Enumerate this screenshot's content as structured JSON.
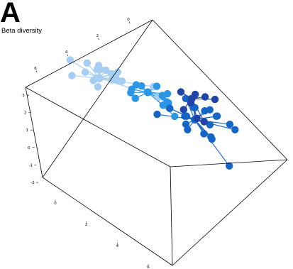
{
  "panel": {
    "label": "A",
    "title": "Beta diversity"
  },
  "chart_data": {
    "type": "scatter",
    "subtype": "3d-ordination-spider",
    "title": "Beta diversity",
    "xlabel": "",
    "ylabel": "",
    "zlabel": "",
    "grid": false,
    "legend": "none",
    "axes": {
      "back_axis": {
        "ticks": [
          6,
          4,
          2,
          0
        ]
      },
      "left_axis": {
        "ticks": [
          3,
          2,
          1,
          0,
          -1,
          -2
        ]
      },
      "bottom_axis": {
        "ticks": [
          0,
          2,
          4,
          6
        ]
      }
    },
    "series": [
      {
        "color": "#a6cdf2",
        "centroid": [
          0.8,
          3.0,
          1.6
        ],
        "points": [
          [
            0.1,
            2.4,
            2.9
          ],
          [
            0.6,
            2.6,
            2.8
          ],
          [
            1.1,
            2.4,
            2.7
          ],
          [
            1.6,
            2.8,
            2.5
          ],
          [
            0.3,
            2.2,
            2.0
          ],
          [
            0.9,
            3.2,
            2.1
          ],
          [
            1.4,
            3.0,
            1.9
          ],
          [
            0.2,
            3.1,
            1.7
          ],
          [
            0.7,
            2.8,
            1.5
          ],
          [
            1.2,
            3.4,
            1.4
          ],
          [
            0.5,
            3.5,
            1.8
          ],
          [
            1.0,
            2.6,
            1.3
          ],
          [
            1.5,
            3.2,
            1.6
          ],
          [
            0.4,
            3.4,
            1.2
          ],
          [
            0.8,
            3.7,
            1.1
          ],
          [
            1.3,
            2.9,
            2.2
          ],
          [
            2.4,
            3.6,
            1.4
          ],
          [
            2.8,
            3.3,
            1.0
          ],
          [
            0.7,
            3.1,
            2.4
          ]
        ]
      },
      {
        "color": "#2b96e6",
        "centroid": [
          1.8,
          4.2,
          0.4
        ],
        "points": [
          [
            1.5,
            4.0,
            0.9
          ],
          [
            2.0,
            4.4,
            0.8
          ],
          [
            2.4,
            4.1,
            0.5
          ],
          [
            1.3,
            4.6,
            0.4
          ],
          [
            2.2,
            4.7,
            0.2
          ],
          [
            1.6,
            3.8,
            0.1
          ],
          [
            2.5,
            4.3,
            -0.1
          ],
          [
            1.9,
            4.9,
            -0.2
          ],
          [
            1.1,
            4.3,
            0.0
          ],
          [
            2.7,
            3.9,
            0.3
          ],
          [
            2.1,
            4.6,
            -0.6
          ],
          [
            2.6,
            4.5,
            -1.1
          ],
          [
            1.4,
            3.9,
            0.6
          ]
        ]
      },
      {
        "color": "#1565c8",
        "centroid": [
          4.2,
          3.2,
          0.1
        ],
        "points": [
          [
            3.6,
            2.7,
            0.9
          ],
          [
            4.4,
            2.9,
            1.2
          ],
          [
            5.0,
            3.2,
            0.7
          ],
          [
            3.2,
            3.3,
            0.4
          ],
          [
            3.9,
            3.6,
            0.6
          ],
          [
            4.7,
            3.7,
            0.3
          ],
          [
            5.3,
            3.5,
            0.1
          ],
          [
            3.0,
            2.9,
            0.1
          ],
          [
            4.0,
            3.0,
            -0.2
          ],
          [
            4.8,
            2.8,
            -0.4
          ],
          [
            3.5,
            3.8,
            -0.3
          ],
          [
            4.3,
            3.9,
            -0.6
          ],
          [
            5.1,
            4.1,
            -0.7
          ],
          [
            3.8,
            3.4,
            -0.9
          ],
          [
            4.6,
            3.5,
            -1.1
          ],
          [
            3.3,
            4.0,
            -0.5
          ],
          [
            4.9,
            3.1,
            -0.9
          ],
          [
            4.1,
            4.2,
            0.2
          ],
          [
            6.4,
            1.8,
            -1.4
          ],
          [
            3.6,
            3.6,
            1.1
          ],
          [
            4.5,
            3.3,
            0.8
          ]
        ]
      },
      {
        "color": "#1f44a8",
        "centroid": [
          2.9,
          5.0,
          0.0
        ],
        "points": [
          [
            2.5,
            5.0,
            0.3
          ],
          [
            2.9,
            5.2,
            0.2
          ],
          [
            3.2,
            5.3,
            0.1
          ],
          [
            3.5,
            5.4,
            0.0
          ],
          [
            2.8,
            5.1,
            -0.4
          ],
          [
            2.6,
            5.0,
            -0.9
          ],
          [
            2.7,
            5.6,
            -1.8
          ],
          [
            2.9,
            5.7,
            -2.0
          ]
        ]
      }
    ]
  }
}
